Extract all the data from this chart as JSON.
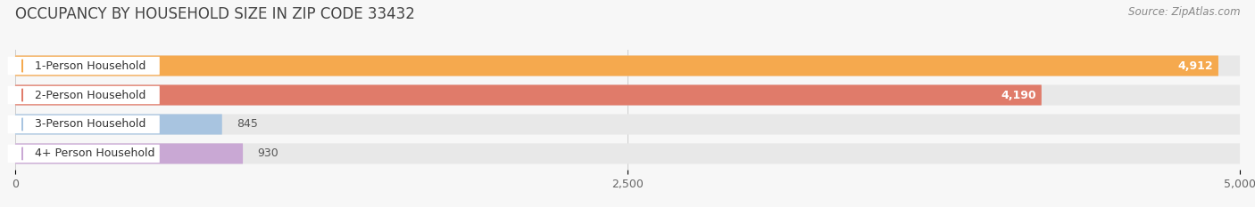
{
  "title": "OCCUPANCY BY HOUSEHOLD SIZE IN ZIP CODE 33432",
  "source": "Source: ZipAtlas.com",
  "categories": [
    "1-Person Household",
    "2-Person Household",
    "3-Person Household",
    "4+ Person Household"
  ],
  "values": [
    4912,
    4190,
    845,
    930
  ],
  "bar_colors": [
    "#F5A94E",
    "#E07B6A",
    "#A8C4E0",
    "#C9A8D4"
  ],
  "xlim": [
    0,
    5000
  ],
  "xticks": [
    0,
    2500,
    5000
  ],
  "xtick_labels": [
    "0",
    "2,500",
    "5,000"
  ],
  "background_color": "#F7F7F7",
  "bar_background_color": "#E8E8E8",
  "title_fontsize": 12,
  "source_fontsize": 8.5,
  "label_fontsize": 9,
  "value_fontsize": 9,
  "figsize": [
    14.06,
    2.33
  ],
  "dpi": 100
}
